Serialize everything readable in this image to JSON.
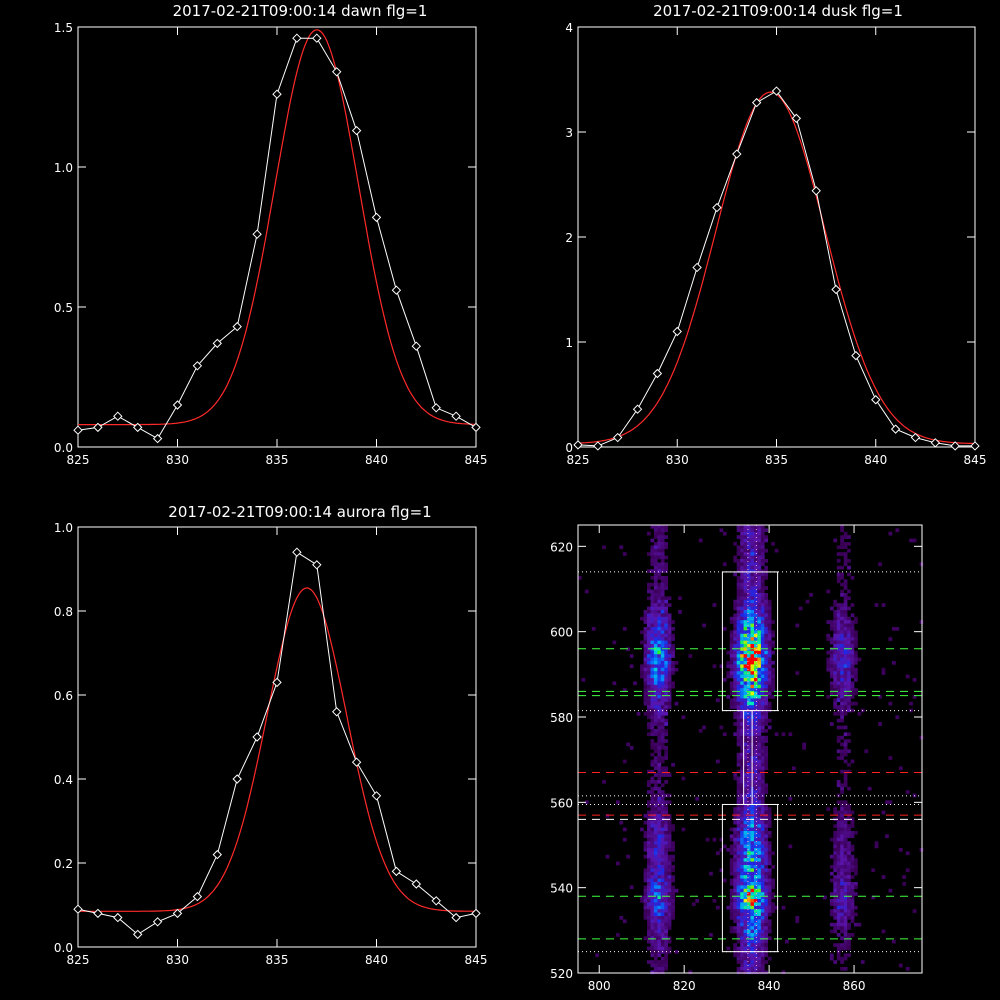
{
  "colors": {
    "background": "#000000",
    "axes": "#ffffff",
    "data_line": "#ffffff",
    "fit_line": "#ff2a2a"
  },
  "chart_data": [
    {
      "type": "line",
      "title": "2017-02-21T09:00:14 dawn flg=1",
      "xlim": [
        825,
        845
      ],
      "ylim": [
        0,
        1.5
      ],
      "xticks": [
        825,
        830,
        835,
        840,
        845
      ],
      "yticks": [
        0.0,
        0.5,
        1.0,
        1.5
      ],
      "ytick_labels": [
        "0.0",
        "0.5",
        "1.0",
        "1.5"
      ],
      "series": [
        {
          "style": "white line with diamond markers",
          "x": [
            825,
            826,
            827,
            828,
            829,
            830,
            831,
            832,
            833,
            834,
            835,
            836,
            837,
            838,
            839,
            840,
            841,
            842,
            843,
            844,
            845
          ],
          "y": [
            0.06,
            0.07,
            0.11,
            0.07,
            0.03,
            0.15,
            0.29,
            0.37,
            0.43,
            0.76,
            1.26,
            1.46,
            1.46,
            1.34,
            1.13,
            0.82,
            0.56,
            0.36,
            0.14,
            0.11,
            0.07
          ]
        },
        {
          "style": "red gaussian fit",
          "gaussian": {
            "amplitude": 1.41,
            "center": 837.0,
            "sigma": 2.1,
            "baseline": 0.08
          }
        }
      ]
    },
    {
      "type": "line",
      "title": "2017-02-21T09:00:14 dusk flg=1",
      "xlim": [
        825,
        845
      ],
      "ylim": [
        0,
        4
      ],
      "xticks": [
        825,
        830,
        835,
        840,
        845
      ],
      "yticks": [
        0,
        1,
        2,
        3,
        4
      ],
      "ytick_labels": [
        "0",
        "1",
        "2",
        "3",
        "4"
      ],
      "series": [
        {
          "style": "white line with diamond markers",
          "x": [
            825,
            826,
            827,
            828,
            829,
            830,
            831,
            832,
            833,
            834,
            835,
            836,
            837,
            838,
            839,
            840,
            841,
            842,
            843,
            844,
            845
          ],
          "y": [
            0.02,
            0.01,
            0.09,
            0.36,
            0.7,
            1.1,
            1.71,
            2.28,
            2.79,
            3.28,
            3.39,
            3.13,
            2.44,
            1.5,
            0.87,
            0.45,
            0.17,
            0.09,
            0.04,
            0.01,
            0.01
          ]
        },
        {
          "style": "red gaussian fit",
          "gaussian": {
            "amplitude": 3.35,
            "center": 834.7,
            "sigma": 2.75,
            "baseline": 0.03
          }
        }
      ]
    },
    {
      "type": "line",
      "title": "2017-02-21T09:00:14 aurora flg=1",
      "xlim": [
        825,
        845
      ],
      "ylim": [
        0,
        1.0
      ],
      "xticks": [
        825,
        830,
        835,
        840,
        845
      ],
      "yticks": [
        0.0,
        0.2,
        0.4,
        0.6,
        0.8,
        1.0
      ],
      "ytick_labels": [
        "0.0",
        "0.2",
        "0.4",
        "0.6",
        "0.8",
        "1.0"
      ],
      "series": [
        {
          "style": "white line with diamond markers",
          "x": [
            825,
            826,
            827,
            828,
            829,
            830,
            831,
            832,
            833,
            834,
            835,
            836,
            837,
            838,
            839,
            840,
            841,
            842,
            843,
            844,
            845
          ],
          "y": [
            0.09,
            0.08,
            0.07,
            0.03,
            0.06,
            0.08,
            0.12,
            0.22,
            0.4,
            0.5,
            0.63,
            0.94,
            0.91,
            0.56,
            0.44,
            0.36,
            0.18,
            0.15,
            0.11,
            0.07,
            0.08
          ]
        },
        {
          "style": "red gaussian fit",
          "gaussian": {
            "amplitude": 0.77,
            "center": 836.5,
            "sigma": 2.0,
            "baseline": 0.085
          }
        }
      ]
    },
    {
      "type": "heatmap",
      "title": "",
      "xlim": [
        795,
        876
      ],
      "ylim": [
        520,
        625
      ],
      "xticks": [
        800,
        820,
        840,
        860
      ],
      "yticks": [
        520,
        540,
        560,
        580,
        600,
        620
      ],
      "colormap": "rainbow (black-purple-blue-cyan-green-yellow-red)",
      "emission_bands": [
        {
          "x_center": 835.5,
          "x_width": 3.5,
          "intensity": 1.0
        },
        {
          "x_center": 813.5,
          "x_width": 3.0,
          "intensity": 0.55
        },
        {
          "x_center": 857.0,
          "x_width": 3.0,
          "intensity": 0.35
        }
      ],
      "hot_regions": [
        {
          "y_range": [
            582,
            606
          ],
          "peak_y": 594,
          "strength": 1.0
        },
        {
          "y_range": [
            528,
            558
          ],
          "peak_y": 538,
          "strength": 0.7
        }
      ],
      "boxes": [
        {
          "x": [
            829,
            842
          ],
          "y": [
            581.5,
            614
          ]
        },
        {
          "x": [
            829,
            842
          ],
          "y": [
            525,
            559.5
          ]
        }
      ],
      "connector": {
        "x": [
          834,
          836
        ],
        "y": [
          559.5,
          581.5
        ]
      },
      "vertical_dotted_lines_x": [
        835,
        837
      ],
      "horizontal_dotted_lines_y": [
        614,
        581.5,
        561.5,
        559.5,
        525
      ],
      "green_dashed_lines_y": [
        596,
        586,
        585,
        538,
        528
      ],
      "red_dashed_lines_y": [
        567,
        557
      ],
      "white_dashed_lines_y": [
        556
      ]
    }
  ]
}
